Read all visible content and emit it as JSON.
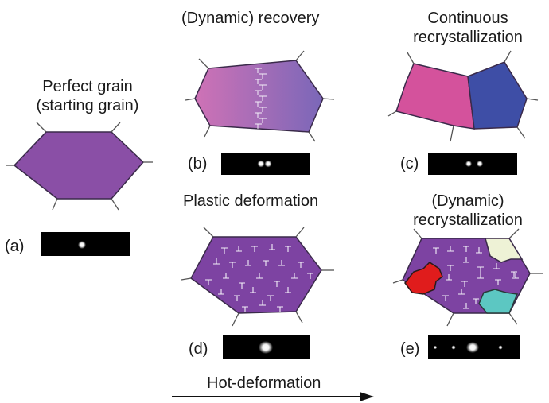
{
  "panels": [
    {
      "id": "a",
      "letter": "(a)",
      "title_lines": [
        "Perfect grain",
        "(starting grain)"
      ]
    },
    {
      "id": "b",
      "letter": "(b)",
      "title_lines": [
        "(Dynamic) recovery"
      ]
    },
    {
      "id": "c",
      "letter": "(c)",
      "title_lines": [
        "Continuous",
        "recrystallization"
      ]
    },
    {
      "id": "d",
      "letter": "(d)",
      "title_lines": [
        "Plastic deformation"
      ]
    },
    {
      "id": "e",
      "letter": "(e)",
      "title_lines": [
        "(Dynamic)",
        "recrystallization"
      ]
    }
  ],
  "arrow_label": "Hot-deformation",
  "colors": {
    "perfect_grain": "#8a4fa6",
    "recovery_left": "#cf72b6",
    "recovery_right": "#7a67b8",
    "subgrain_left": "#d4529c",
    "subgrain_right": "#3e4ea6",
    "deformed_grain": "#7d43a2",
    "new_grain_red": "#e01c1c",
    "new_grain_cyan": "#5cc7c2",
    "new_grain_cream": "#eef2d6",
    "outline": "#3a2a4a",
    "diffraction_bg": "#000000"
  }
}
